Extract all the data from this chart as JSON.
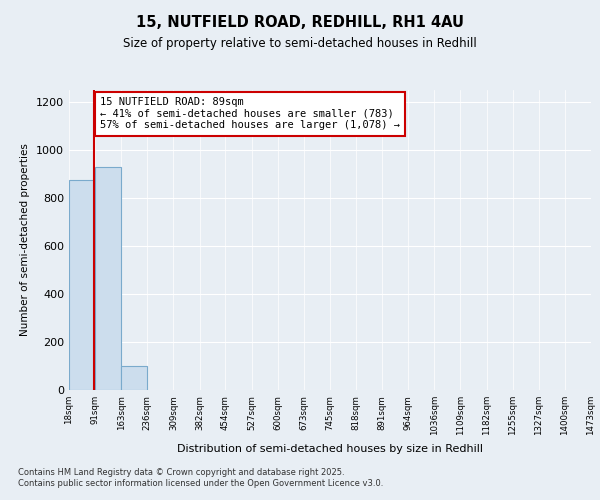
{
  "title1": "15, NUTFIELD ROAD, REDHILL, RH1 4AU",
  "title2": "Size of property relative to semi-detached houses in Redhill",
  "xlabel": "Distribution of semi-detached houses by size in Redhill",
  "ylabel": "Number of semi-detached properties",
  "bin_edges": [
    18,
    91,
    163,
    236,
    309,
    382,
    454,
    527,
    600,
    673,
    745,
    818,
    891,
    964,
    1036,
    1109,
    1182,
    1255,
    1327,
    1400,
    1473
  ],
  "bar_heights": [
    875,
    930,
    100,
    0,
    0,
    0,
    0,
    0,
    0,
    0,
    0,
    0,
    0,
    0,
    0,
    0,
    0,
    0,
    0,
    0
  ],
  "bar_color": "#ccdded",
  "bar_edge_color": "#7aaacc",
  "property_size": 89,
  "property_line_color": "#cc0000",
  "annotation_text": "15 NUTFIELD ROAD: 89sqm\n← 41% of semi-detached houses are smaller (783)\n57% of semi-detached houses are larger (1,078) →",
  "annotation_box_color": "#ffffff",
  "annotation_box_edge": "#cc0000",
  "ylim": [
    0,
    1250
  ],
  "yticks": [
    0,
    200,
    400,
    600,
    800,
    1000,
    1200
  ],
  "footnote": "Contains HM Land Registry data © Crown copyright and database right 2025.\nContains public sector information licensed under the Open Government Licence v3.0.",
  "bg_color": "#e8eef4"
}
